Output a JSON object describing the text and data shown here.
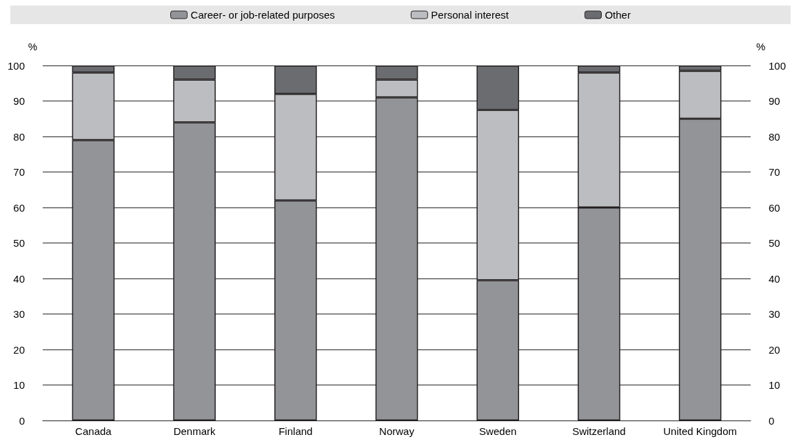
{
  "chart_data": {
    "type": "bar",
    "stacked": true,
    "ylabel": "%",
    "y2label": "%",
    "categories": [
      "Canada",
      "Denmark",
      "Finland",
      "Norway",
      "Sweden",
      "Switzerland",
      "United Kingdom"
    ],
    "series": [
      {
        "name": "Career- or job-related purposes",
        "color": "#939498",
        "values": [
          79,
          84,
          62,
          91,
          39.5,
          60,
          85
        ]
      },
      {
        "name": "Personal interest",
        "color": "#bcbdc1",
        "values": [
          19,
          12,
          30,
          5,
          48,
          38,
          13.5
        ]
      },
      {
        "name": "Other",
        "color": "#6b6c70",
        "values": [
          2,
          4,
          8,
          4,
          12.5,
          2,
          1.5
        ]
      }
    ],
    "ylim": [
      0,
      100
    ],
    "yticks": [
      0,
      10,
      20,
      30,
      40,
      50,
      60,
      70,
      80,
      90,
      100
    ],
    "y2lim": [
      0,
      100
    ],
    "y2ticks": [
      0,
      10,
      20,
      30,
      40,
      50,
      60,
      70,
      80,
      90,
      100
    ],
    "grid": "y",
    "legend": "top"
  }
}
